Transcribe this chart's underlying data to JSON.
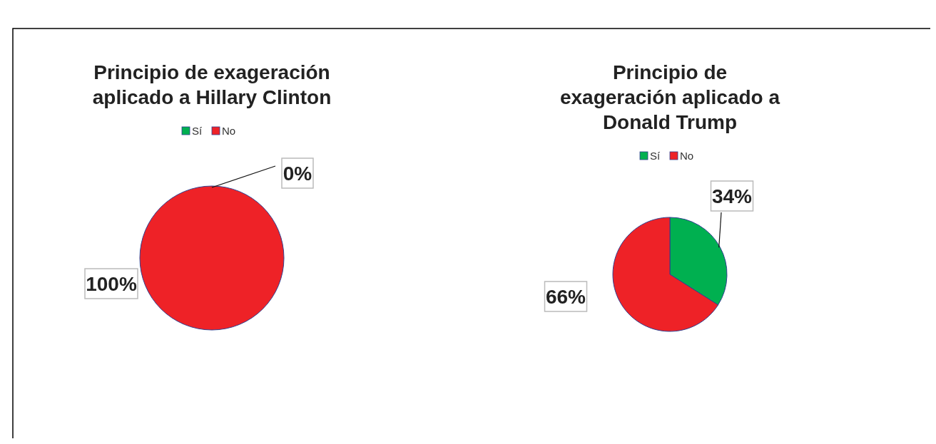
{
  "chart_data": [
    {
      "type": "pie",
      "title": "Principio de exageración aplicado a Hillary Clinton",
      "categories": [
        "Sí",
        "No"
      ],
      "values": [
        0,
        100
      ],
      "value_labels": [
        "0%",
        "100%"
      ],
      "colors": [
        "#00b050",
        "#ee2227"
      ],
      "legend": "top"
    },
    {
      "type": "pie",
      "title": "Principio de exageración aplicado a Donald Trump",
      "categories": [
        "Sí",
        "No"
      ],
      "values": [
        34,
        66
      ],
      "value_labels": [
        "34%",
        "66%"
      ],
      "colors": [
        "#00b050",
        "#ee2227"
      ],
      "legend": "top"
    }
  ]
}
